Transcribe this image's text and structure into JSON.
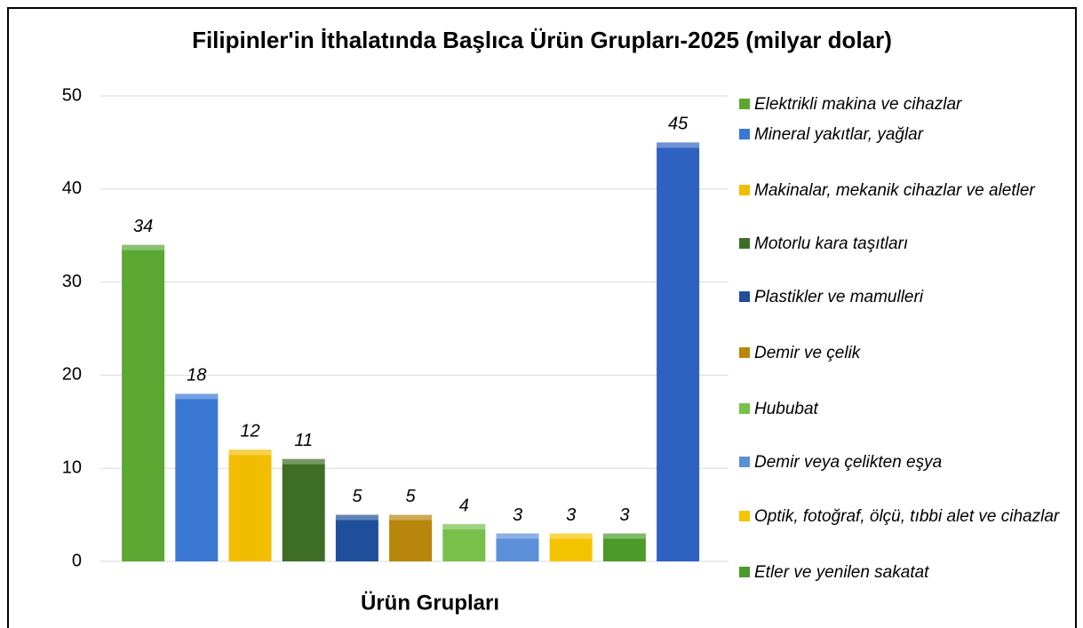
{
  "chart_data": {
    "type": "bar",
    "title": "Filipinler'in İthalatında Başlıca Ürün Grupları-2025 (milyar dolar)",
    "x_label": "Ürün Grupları",
    "categories": [
      "Elektrikli makina ve cihazlar",
      "Mineral yakıtlar, yağlar",
      "Makinalar, mekanik cihazlar ve aletler",
      "Motorlu kara taşıtları",
      "Plastikler ve mamulleri",
      "Demir ve çelik",
      "Hububat",
      "Demir veya çelikten eşya",
      "Optik, fotoğraf, ölçü, tıbbi alet ve cihazlar",
      "Etler ve yenilen sakatat",
      null
    ],
    "values": [
      34,
      18,
      12,
      11,
      5,
      5,
      4,
      3,
      3,
      3,
      45
    ],
    "colors": [
      "#5aa832",
      "#3a78d4",
      "#f2bd00",
      "#3e6e25",
      "#1f4e9a",
      "#b8860b",
      "#78c04a",
      "#5b8fd8",
      "#f5c400",
      "#4c9a2a",
      "#2f62c0"
    ],
    "ylim": [
      0,
      50
    ],
    "yticks": [
      0,
      10,
      20,
      30,
      40,
      50
    ],
    "grid": true
  }
}
